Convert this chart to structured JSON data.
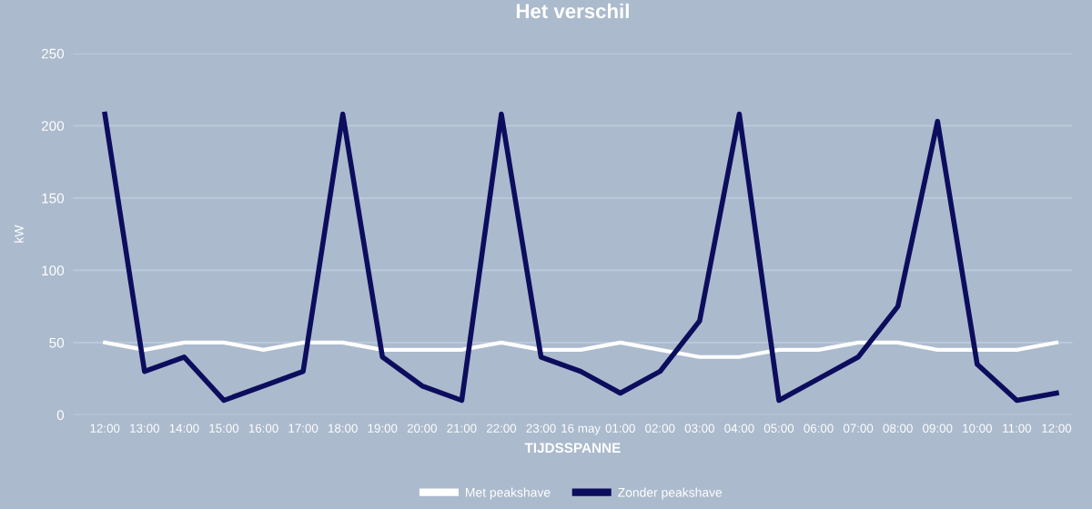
{
  "chart_data": {
    "type": "line",
    "title": "Het verschil",
    "xlabel": "TIJDSSPANNE",
    "ylabel": "kW",
    "categories": [
      "12:00",
      "13:00",
      "14:00",
      "15:00",
      "16:00",
      "17:00",
      "18:00",
      "19:00",
      "20:00",
      "21:00",
      "22:00",
      "23:00",
      "16 may",
      "01:00",
      "02:00",
      "03:00",
      "04:00",
      "05:00",
      "06:00",
      "07:00",
      "08:00",
      "09:00",
      "10:00",
      "11:00",
      "12:00"
    ],
    "series": [
      {
        "name": "Met peakshave",
        "color": "#ffffff",
        "values": [
          50,
          45,
          50,
          50,
          45,
          50,
          50,
          45,
          45,
          45,
          50,
          45,
          45,
          50,
          45,
          40,
          40,
          45,
          45,
          50,
          50,
          45,
          45,
          45,
          50
        ]
      },
      {
        "name": "Zonder peakshave",
        "color": "#0d0d5e",
        "values": [
          208,
          30,
          40,
          10,
          20,
          30,
          208,
          40,
          20,
          10,
          208,
          40,
          30,
          15,
          30,
          65,
          208,
          10,
          25,
          40,
          75,
          203,
          35,
          10,
          15
        ]
      }
    ],
    "ylim": [
      0,
      250
    ],
    "yticks": [
      0,
      50,
      100,
      150,
      200,
      250
    ],
    "grid": "y",
    "legend": "bottom",
    "marker": "none",
    "line_style": "solid"
  }
}
